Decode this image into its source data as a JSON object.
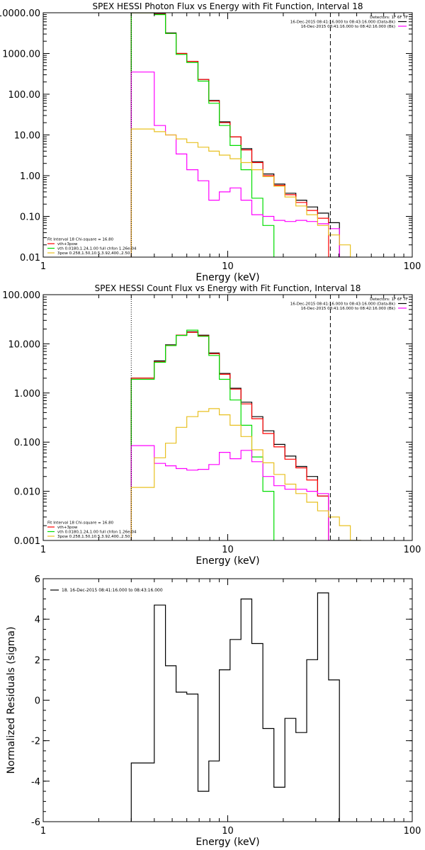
{
  "chart_data": [
    {
      "type": "line",
      "title": "SPEX HESSI Photon Flux vs Energy with Fit Function, Interval 18",
      "xlabel": "Energy (keV)",
      "ylabel": "",
      "xscale": "log",
      "yscale": "log",
      "xlim": [
        1,
        100
      ],
      "ylim": [
        0.01,
        10000
      ],
      "x_ticks": [
        {
          "v": 1,
          "label": "1"
        },
        {
          "v": 10,
          "label": "10"
        },
        {
          "v": 100,
          "label": "100"
        }
      ],
      "y_ticks": [
        {
          "v": 0.01,
          "label": "0.01"
        },
        {
          "v": 0.1,
          "label": "0.10"
        },
        {
          "v": 1,
          "label": "1.00"
        },
        {
          "v": 10,
          "label": "10.00"
        },
        {
          "v": 100,
          "label": "100.00"
        },
        {
          "v": 1000,
          "label": "1000.00"
        },
        {
          "v": 10000,
          "label": "10000.00"
        }
      ],
      "vlines": [
        {
          "x": 3,
          "style": "dotted"
        },
        {
          "x": 36,
          "style": "dashed"
        }
      ],
      "legend_top_right": [
        {
          "text": "Detectors: 1F 6F 7F",
          "color": null
        },
        {
          "text": "16-Dec-2015 08:41:16.000 to 08:43:16.000 (Data-Bk)",
          "color": "#000000"
        },
        {
          "text": "16-Dec-2015 08:41:16.000 to 08:42:16.000 (Bk)",
          "color": "#ff00ff"
        }
      ],
      "legend_bottom_left": [
        {
          "text": "Fit Interval 18   Chi-square = 16.80",
          "color": null
        },
        {
          "text": "vth+3pow",
          "color": "#ff0000"
        },
        {
          "text": "vth 0.0180,1.24,1.00  full chfon 1.26e-04",
          "color": "#00dd00"
        },
        {
          "text": "3pow 0.258,1.50,10.5,3.92,400.,2.50",
          "color": "#e8c020"
        }
      ],
      "series": [
        {
          "color": "#000000",
          "start": 3.0,
          "edges": [
            3.0,
            3.43,
            4.0,
            4.6,
            5.25,
            6.0,
            6.9,
            7.9,
            9.0,
            10.3,
            11.8,
            13.5,
            15.5,
            17.8,
            20.4,
            23.4,
            26.8,
            30.7,
            35.2,
            40.3,
            46.2
          ],
          "values": [
            10000.0,
            10000.0,
            9500,
            3200,
            1000,
            640,
            230,
            70,
            21,
            9,
            4.6,
            2.2,
            1.1,
            0.62,
            0.37,
            0.25,
            0.17,
            0.12,
            0.07,
            0.01
          ]
        },
        {
          "color": "#ff0000",
          "start": 3.0,
          "edges": [
            3.0,
            3.43,
            4.0,
            4.6,
            5.25,
            6.0,
            6.9,
            7.9,
            9.0,
            10.3,
            11.8,
            13.5,
            15.5,
            17.8,
            20.4,
            23.4,
            26.8,
            30.7,
            35.2
          ],
          "values": [
            10000.0,
            10000.0,
            9200,
            3100,
            1000,
            640,
            230,
            68,
            20,
            9,
            4.3,
            2.1,
            1.0,
            0.58,
            0.34,
            0.22,
            0.14,
            0.09
          ]
        },
        {
          "color": "#00dd00",
          "start": 3.0,
          "edges": [
            3.0,
            3.43,
            4.0,
            4.6,
            5.25,
            6.0,
            6.9,
            7.9,
            9.0,
            10.3,
            11.8,
            13.5,
            15.5,
            17.8
          ],
          "values": [
            10000.0,
            10000.0,
            9000,
            3100,
            950,
            600,
            210,
            60,
            17,
            5.5,
            1.4,
            0.28,
            0.06
          ]
        },
        {
          "color": "#ff00ff",
          "start": 3.0,
          "edges": [
            3.0,
            3.43,
            4.0,
            4.6,
            5.25,
            6.0,
            6.9,
            7.9,
            9.0,
            10.3,
            11.8,
            13.5,
            15.5,
            17.8,
            20.4,
            23.4,
            26.8,
            30.7,
            35.2,
            40.3
          ],
          "values": [
            350,
            350,
            17,
            10,
            3.4,
            1.4,
            0.75,
            0.25,
            0.4,
            0.5,
            0.25,
            0.11,
            0.1,
            0.08,
            0.075,
            0.08,
            0.075,
            0.066,
            0.05
          ]
        },
        {
          "color": "#e8c020",
          "start": 3.0,
          "edges": [
            3.0,
            3.43,
            4.0,
            4.6,
            5.25,
            6.0,
            6.9,
            7.9,
            9.0,
            10.3,
            11.8,
            13.5,
            15.5,
            17.8,
            20.4,
            23.4,
            26.8,
            30.7,
            35.2,
            40.3,
            46.2
          ],
          "values": [
            14,
            14,
            12,
            10,
            8,
            6.5,
            5,
            4,
            3.2,
            2.6,
            2.1,
            1.4,
            0.95,
            0.55,
            0.3,
            0.18,
            0.11,
            0.06,
            0.035,
            0.02
          ]
        }
      ]
    },
    {
      "type": "line",
      "title": "SPEX HESSI Count Flux vs Energy with Fit Function, Interval 18",
      "xlabel": "Energy (keV)",
      "ylabel": "",
      "xscale": "log",
      "yscale": "log",
      "xlim": [
        1,
        100
      ],
      "ylim": [
        0.001,
        100
      ],
      "x_ticks": [
        {
          "v": 1,
          "label": "1"
        },
        {
          "v": 10,
          "label": "10"
        },
        {
          "v": 100,
          "label": "100"
        }
      ],
      "y_ticks": [
        {
          "v": 0.001,
          "label": "0.001"
        },
        {
          "v": 0.01,
          "label": "0.010"
        },
        {
          "v": 0.1,
          "label": "0.100"
        },
        {
          "v": 1,
          "label": "1.000"
        },
        {
          "v": 10,
          "label": "10.000"
        },
        {
          "v": 100,
          "label": "100.000"
        }
      ],
      "vlines": [
        {
          "x": 3,
          "style": "dotted"
        },
        {
          "x": 36,
          "style": "dashed"
        }
      ],
      "legend_top_right": [
        {
          "text": "Detectors: 1F 6F 7F",
          "color": null
        },
        {
          "text": "16-Dec-2015 08:41:16.000 to 08:43:16.000 (Data-Bk)",
          "color": "#000000"
        },
        {
          "text": "16-Dec-2015 08:41:16.000 to 08:42:16.000 (Bk)",
          "color": "#ff00ff"
        }
      ],
      "legend_bottom_left": [
        {
          "text": "Fit Interval 18   Chi-square = 16.80",
          "color": null
        },
        {
          "text": "vth+3pow",
          "color": "#ff0000"
        },
        {
          "text": "vth 0.0180,1.24,1.00  full chfon 1.26e-04",
          "color": "#00dd00"
        },
        {
          "text": "3pow 0.258,1.50,10.5,3.92,400.,2.50",
          "color": "#e8c020"
        }
      ],
      "series": [
        {
          "color": "#000000",
          "start": 3.0,
          "edges": [
            3.0,
            3.43,
            4.0,
            4.6,
            5.25,
            6.0,
            6.9,
            7.9,
            9.0,
            10.3,
            11.8,
            13.5,
            15.5,
            17.8,
            20.4,
            23.4,
            26.8,
            30.7,
            35.2,
            40.3,
            46.2,
            52.9
          ],
          "values": [
            2.0,
            2.0,
            4.5,
            9.5,
            15.0,
            17.5,
            15.0,
            6.5,
            2.5,
            1.25,
            0.65,
            0.33,
            0.17,
            0.09,
            0.052,
            0.032,
            0.02,
            0.008,
            0.001,
            0.001,
            0.001
          ]
        },
        {
          "color": "#ff0000",
          "start": 3.0,
          "edges": [
            3.0,
            3.43,
            4.0,
            4.6,
            5.25,
            6.0,
            6.9,
            7.9,
            9.0,
            10.3,
            11.8,
            13.5,
            15.5,
            17.8,
            20.4,
            23.4,
            26.8,
            30.7,
            35.2
          ],
          "values": [
            2.0,
            2.0,
            4.3,
            9.3,
            15.0,
            17.2,
            14.5,
            6.3,
            2.4,
            1.2,
            0.6,
            0.3,
            0.15,
            0.08,
            0.045,
            0.03,
            0.017,
            0.008
          ]
        },
        {
          "color": "#00dd00",
          "start": 3.0,
          "edges": [
            3.0,
            3.43,
            4.0,
            4.6,
            5.25,
            6.0,
            6.9,
            7.9,
            9.0,
            10.3,
            11.8,
            13.5,
            15.5,
            17.8
          ],
          "values": [
            1.9,
            1.9,
            4.2,
            9.2,
            14.8,
            19.0,
            14.2,
            5.8,
            1.9,
            0.72,
            0.22,
            0.05,
            0.01
          ]
        },
        {
          "color": "#ff00ff",
          "start": 3.0,
          "edges": [
            3.0,
            3.43,
            4.0,
            4.6,
            5.25,
            6.0,
            6.9,
            7.9,
            9.0,
            10.3,
            11.8,
            13.5,
            15.5,
            17.8,
            20.4,
            23.4,
            26.8,
            30.7,
            35.2
          ],
          "values": [
            0.085,
            0.085,
            0.037,
            0.033,
            0.029,
            0.027,
            0.028,
            0.035,
            0.062,
            0.046,
            0.068,
            0.04,
            0.02,
            0.013,
            0.011,
            0.011,
            0.01,
            0.009
          ]
        },
        {
          "color": "#e8c020",
          "start": 3.0,
          "edges": [
            3.0,
            3.43,
            4.0,
            4.6,
            5.25,
            6.0,
            6.9,
            7.9,
            9.0,
            10.3,
            11.8,
            13.5,
            15.5,
            17.8,
            20.4,
            23.4,
            26.8,
            30.7,
            35.2,
            40.3,
            46.2,
            52.9
          ],
          "values": [
            0.012,
            0.012,
            0.048,
            0.095,
            0.2,
            0.33,
            0.42,
            0.48,
            0.36,
            0.22,
            0.13,
            0.07,
            0.038,
            0.022,
            0.014,
            0.009,
            0.006,
            0.004,
            0.003,
            0.002,
            0.001
          ]
        }
      ]
    },
    {
      "type": "line",
      "title": "",
      "xlabel": "Energy (keV)",
      "ylabel": "Normalized Residuals (sigma)",
      "xscale": "log",
      "yscale": "linear",
      "xlim": [
        1,
        100
      ],
      "ylim": [
        -6,
        6
      ],
      "x_ticks": [
        {
          "v": 1,
          "label": "1"
        },
        {
          "v": 10,
          "label": "10"
        },
        {
          "v": 100,
          "label": "100"
        }
      ],
      "y_ticks": [
        {
          "v": -6,
          "label": "-6"
        },
        {
          "v": -4,
          "label": "-4"
        },
        {
          "v": -2,
          "label": "-2"
        },
        {
          "v": 0,
          "label": "0"
        },
        {
          "v": 2,
          "label": "2"
        },
        {
          "v": 4,
          "label": "4"
        },
        {
          "v": 6,
          "label": "6"
        }
      ],
      "vlines": [],
      "legend_top_left": [
        {
          "text": "18. 16-Dec-2015 08:41:16.000 to 08:43:16.000",
          "color": "#000000"
        }
      ],
      "series": [
        {
          "color": "#000000",
          "start": 3.0,
          "edges": [
            3.0,
            3.43,
            4.0,
            4.6,
            5.25,
            6.0,
            6.9,
            7.9,
            9.0,
            10.3,
            11.8,
            13.5,
            15.5,
            17.8,
            20.4,
            23.4,
            26.8,
            30.7,
            35.2,
            40.3
          ],
          "values": [
            -3.1,
            -3.1,
            4.7,
            1.7,
            0.4,
            0.3,
            -4.5,
            -3.0,
            1.5,
            3.0,
            5.0,
            2.8,
            -1.4,
            -4.3,
            -0.9,
            -1.6,
            2.0,
            5.3,
            1.0
          ]
        }
      ]
    }
  ]
}
